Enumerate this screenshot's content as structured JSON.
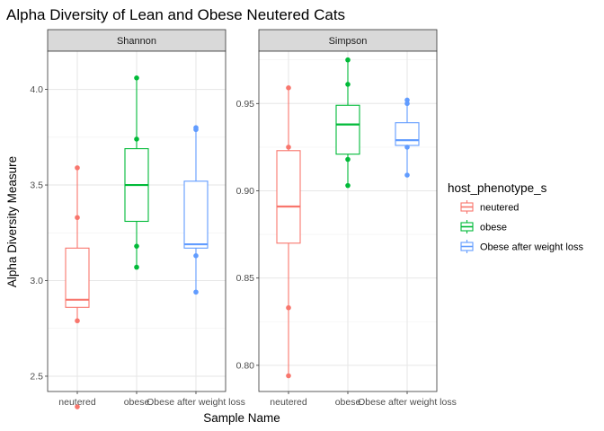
{
  "chart_data": {
    "type": "box",
    "title": "Alpha Diversity of Lean and Obese Neutered Cats",
    "xlabel": "Sample Name",
    "ylabel": "Alpha Diversity Measure",
    "categories": [
      "neutered",
      "obese",
      "Obese after weight loss"
    ],
    "legend": {
      "title": "host_phenotype_s",
      "placement": "right",
      "entries": [
        "neutered",
        "obese",
        "Obese after weight loss"
      ]
    },
    "colors": {
      "neutered": "#F8766D",
      "obese": "#00BA38",
      "Obese after weight loss": "#619CFF"
    },
    "grid": true,
    "panels": [
      {
        "label": "Shannon",
        "ylim": [
          2.42,
          4.2
        ],
        "yticks": [
          "2.5",
          "3.0",
          "3.5",
          "4.0"
        ],
        "groups": [
          {
            "category": "neutered",
            "min": 2.79,
            "q1": 2.86,
            "median": 2.9,
            "q3": 3.17,
            "max": 3.59,
            "points": [
              2.34,
              2.79,
              3.33,
              3.59
            ]
          },
          {
            "category": "obese",
            "min": 3.07,
            "q1": 3.31,
            "median": 3.5,
            "q3": 3.69,
            "max": 4.06,
            "points": [
              3.07,
              3.18,
              3.74,
              4.06
            ]
          },
          {
            "category": "Obese after weight loss",
            "min": 2.94,
            "q1": 3.17,
            "median": 3.19,
            "q3": 3.52,
            "max": 3.8,
            "points": [
              2.94,
              3.13,
              3.79,
              3.8
            ]
          }
        ]
      },
      {
        "label": "Simpson",
        "ylim": [
          0.785,
          0.98
        ],
        "yticks": [
          "0.80",
          "0.85",
          "0.90",
          "0.95"
        ],
        "groups": [
          {
            "category": "neutered",
            "min": 0.794,
            "q1": 0.87,
            "median": 0.891,
            "q3": 0.923,
            "max": 0.959,
            "points": [
              0.794,
              0.833,
              0.925,
              0.959
            ]
          },
          {
            "category": "obese",
            "min": 0.903,
            "q1": 0.921,
            "median": 0.938,
            "q3": 0.949,
            "max": 0.975,
            "points": [
              0.903,
              0.918,
              0.961,
              0.975
            ]
          },
          {
            "category": "Obese after weight loss",
            "min": 0.909,
            "q1": 0.926,
            "median": 0.929,
            "q3": 0.939,
            "max": 0.952,
            "points": [
              0.909,
              0.925,
              0.95,
              0.952
            ]
          }
        ]
      }
    ]
  }
}
